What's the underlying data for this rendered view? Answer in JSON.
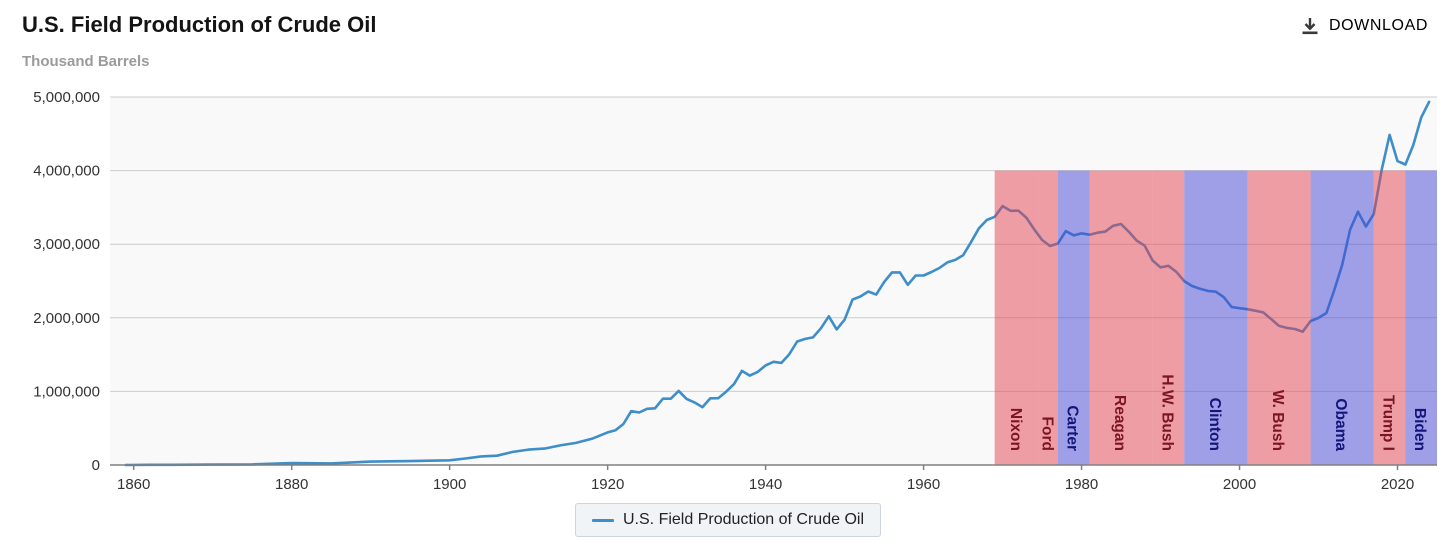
{
  "header": {
    "title": "U.S. Field Production of Crude Oil",
    "subtitle": "Thousand Barrels",
    "download_label": "DOWNLOAD"
  },
  "legend": {
    "label": "U.S. Field Production of Crude Oil",
    "line_color": "#3d8ec9"
  },
  "chart_data": {
    "type": "line",
    "title": "U.S. Field Production of Crude Oil",
    "ylabel": "Thousand Barrels",
    "xlim": [
      1857,
      2025
    ],
    "ylim": [
      0,
      5000000
    ],
    "grid": true,
    "yticks": [
      0,
      1000000,
      2000000,
      3000000,
      4000000,
      5000000
    ],
    "ytick_labels": [
      "0",
      "1,000,000",
      "2,000,000",
      "3,000,000",
      "4,000,000",
      "5,000,000"
    ],
    "xticks": [
      1860,
      1880,
      1900,
      1920,
      1940,
      1960,
      1980,
      2000,
      2020
    ],
    "line_color": "#3d8ec9",
    "plot_bg": "#f9f9f9",
    "grid_color": "#cccccc",
    "axis_color": "#808080",
    "tick_label_color": "#333333",
    "series": [
      {
        "name": "U.S. Field Production of Crude Oil",
        "x": [
          1859,
          1862,
          1865,
          1870,
          1875,
          1880,
          1885,
          1890,
          1895,
          1900,
          1902,
          1904,
          1906,
          1908,
          1910,
          1912,
          1914,
          1916,
          1918,
          1920,
          1921,
          1922,
          1923,
          1924,
          1925,
          1926,
          1927,
          1928,
          1929,
          1930,
          1931,
          1932,
          1933,
          1934,
          1935,
          1936,
          1937,
          1938,
          1939,
          1940,
          1941,
          1942,
          1943,
          1944,
          1945,
          1946,
          1947,
          1948,
          1949,
          1950,
          1951,
          1952,
          1953,
          1954,
          1955,
          1956,
          1957,
          1958,
          1959,
          1960,
          1961,
          1962,
          1963,
          1964,
          1965,
          1966,
          1967,
          1968,
          1969,
          1970,
          1971,
          1972,
          1973,
          1974,
          1975,
          1976,
          1977,
          1978,
          1979,
          1980,
          1981,
          1982,
          1983,
          1984,
          1985,
          1986,
          1987,
          1988,
          1989,
          1990,
          1991,
          1992,
          1993,
          1994,
          1995,
          1996,
          1997,
          1998,
          1999,
          2000,
          2001,
          2002,
          2003,
          2004,
          2005,
          2006,
          2007,
          2008,
          2009,
          2010,
          2011,
          2012,
          2013,
          2014,
          2015,
          2016,
          2017,
          2018,
          2019,
          2020,
          2021,
          2022,
          2023,
          2024
        ],
        "y": [
          2,
          3057,
          2498,
          5261,
          8788,
          26286,
          21859,
          45824,
          52892,
          63621,
          88767,
          117081,
          126494,
          178527,
          209557,
          222935,
          265763,
          300767,
          355928,
          442929,
          472183,
          557531,
          732407,
          713940,
          763743,
          770874,
          901129,
          901474,
          1007323,
          898011,
          851081,
          785159,
          905656,
          908065,
          996596,
          1099687,
          1279160,
          1214355,
          1264962,
          1353214,
          1402228,
          1386645,
          1505613,
          1677904,
          1713655,
          1733590,
          1856987,
          2020185,
          1841940,
          1973574,
          2247711,
          2289836,
          2357082,
          2314988,
          2484428,
          2617283,
          2616901,
          2448987,
          2574590,
          2574933,
          2621758,
          2676189,
          2752723,
          2786822,
          2848514,
          3027763,
          3215742,
          3329042,
          3371751,
          3517450,
          3453914,
          3455368,
          3360903,
          3202585,
          3056779,
          2976180,
          3009265,
          3178216,
          3121310,
          3146365,
          3128624,
          3156715,
          3170999,
          3249696,
          3274553,
          3168252,
          3047378,
          2979123,
          2778773,
          2684687,
          2707039,
          2624632,
          2499033,
          2431476,
          2394268,
          2366017,
          2354831,
          2281919,
          2146732,
          2130707,
          2117511,
          2097124,
          2073453,
          1983302,
          1890106,
          1862259,
          1848450,
          1811817,
          1956596,
          1998137,
          2065155,
          2377963,
          2720782,
          3198607,
          3442213,
          3241031,
          3411219,
          4011071,
          4485643,
          4129563,
          4082302,
          4347242,
          4721306,
          4935000
        ]
      }
    ],
    "bands": [
      {
        "label": "Nixon",
        "start": 1969,
        "end": 1974.6,
        "party": "R"
      },
      {
        "label": "Ford",
        "start": 1974.6,
        "end": 1977,
        "party": "R"
      },
      {
        "label": "Carter",
        "start": 1977,
        "end": 1981,
        "party": "D"
      },
      {
        "label": "Reagan",
        "start": 1981,
        "end": 1989,
        "party": "R"
      },
      {
        "label": "H.W. Bush",
        "start": 1989,
        "end": 1993,
        "party": "R"
      },
      {
        "label": "Clinton",
        "start": 1993,
        "end": 2001,
        "party": "D"
      },
      {
        "label": "W. Bush",
        "start": 2001,
        "end": 2009,
        "party": "R"
      },
      {
        "label": "Obama",
        "start": 2009,
        "end": 2017,
        "party": "D"
      },
      {
        "label": "Trump I",
        "start": 2017,
        "end": 2021,
        "party": "R"
      },
      {
        "label": "Biden",
        "start": 2021,
        "end": 2025,
        "party": "D"
      }
    ],
    "band_top": 4000000,
    "band_colors": {
      "R": "rgba(229,65,81,0.5)",
      "D": "rgba(70,70,214,0.5)"
    },
    "band_label_colors": {
      "R": "#7a1524",
      "D": "#14147a"
    },
    "legend_position": "bottom"
  }
}
